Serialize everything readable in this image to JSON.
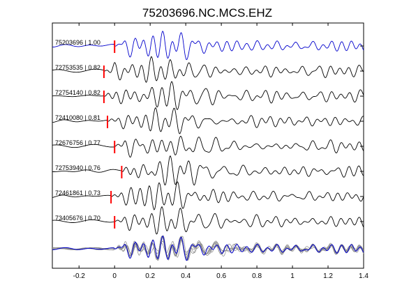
{
  "chart_data": {
    "type": "line",
    "title": "75203696.NC.MCS.EHZ",
    "xlabel": "",
    "ylabel": "",
    "xlim": [
      -0.35,
      1.4
    ],
    "xticks": [
      "-0.2",
      "0",
      "0.2",
      "0.4",
      "0.6",
      "0.8",
      "1",
      "1.2",
      "1.4"
    ],
    "xtick_values": [
      -0.2,
      0,
      0.2,
      0.4,
      0.6,
      0.8,
      1.0,
      1.2,
      1.4
    ],
    "grid": false,
    "colors": {
      "reference": "#0000cc",
      "trace": "#000000",
      "pick": "#ff0000",
      "stack": "#888888"
    },
    "series": [
      {
        "label": "75203696 | 1.00",
        "pick": 0.0,
        "reference": true
      },
      {
        "label": "72753535 | 0.82",
        "pick": -0.06,
        "reference": false
      },
      {
        "label": "72754140 | 0.82",
        "pick": -0.06,
        "reference": false
      },
      {
        "label": "72410080 | 0.81",
        "pick": -0.04,
        "reference": false
      },
      {
        "label": "72676756 | 0.77",
        "pick": 0.0,
        "reference": false
      },
      {
        "label": "72753940 | 0.76",
        "pick": 0.04,
        "reference": false
      },
      {
        "label": "72461861 | 0.73",
        "pick": -0.02,
        "reference": false
      },
      {
        "label": "73405676 | 0.70",
        "pick": 0.0,
        "reference": false
      }
    ],
    "stack": {
      "label": "overlay of all waveforms"
    }
  }
}
